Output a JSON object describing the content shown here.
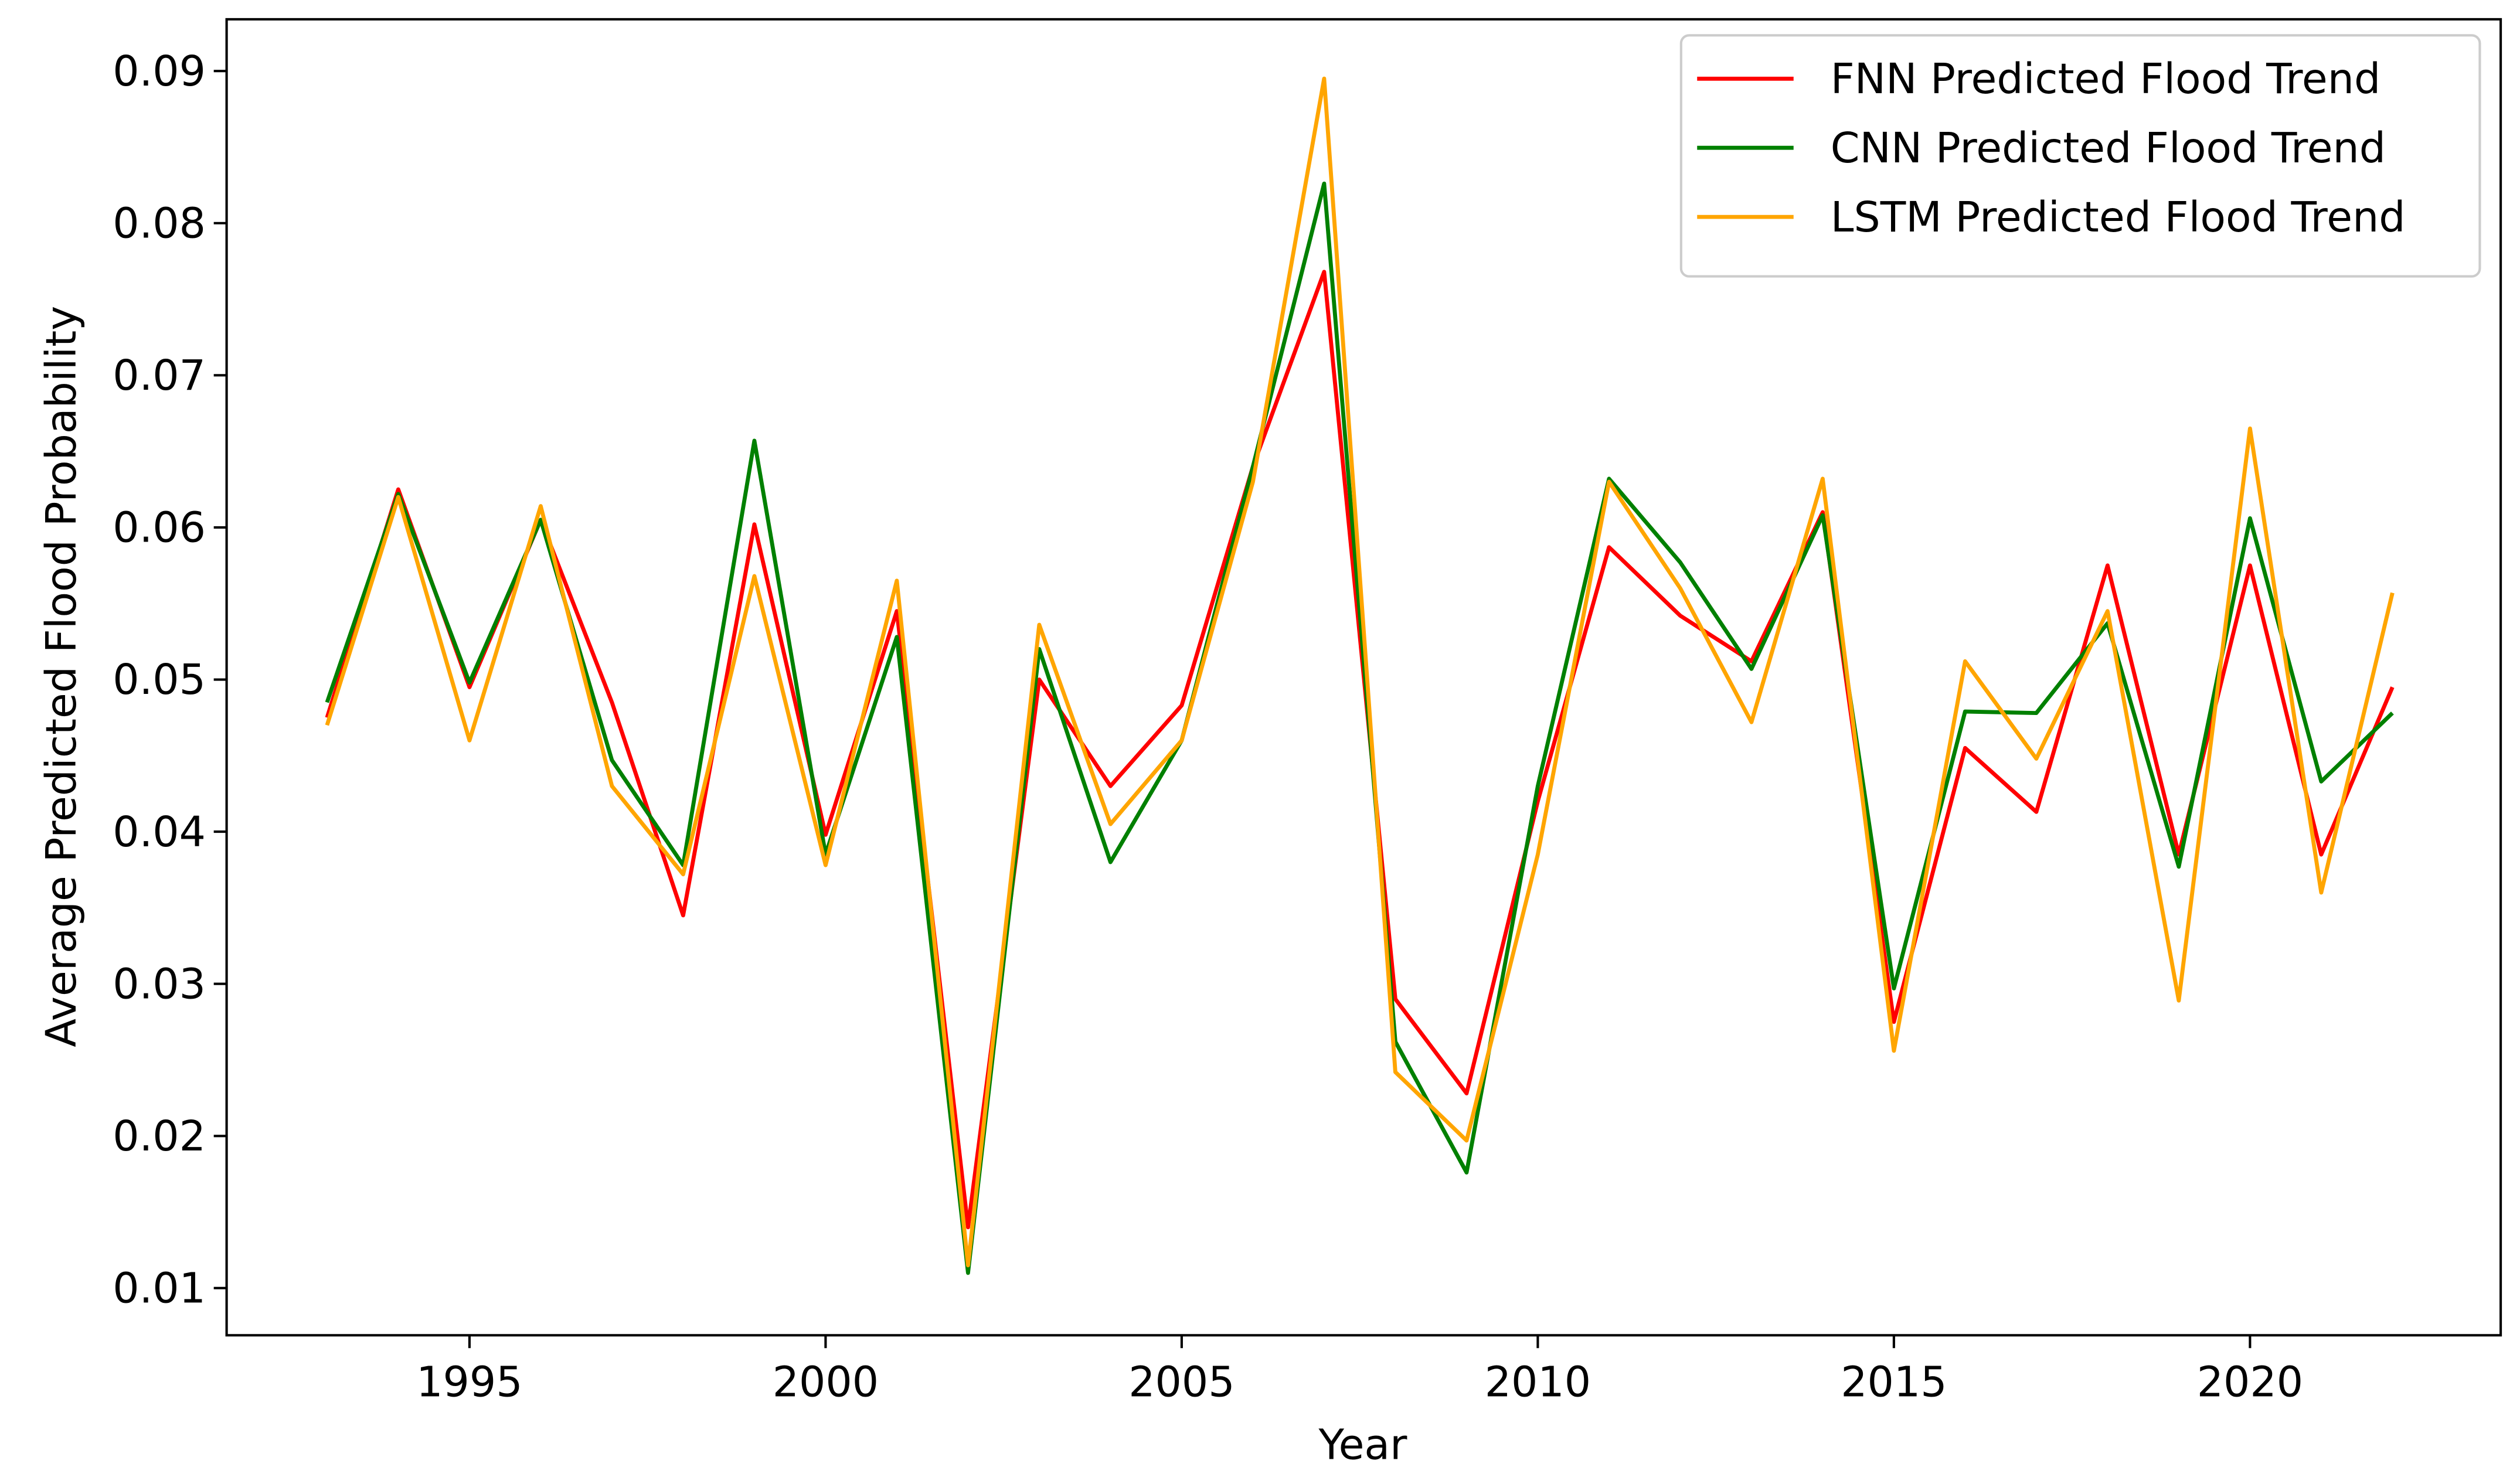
{
  "chart_data": {
    "type": "line",
    "x_label": "Year",
    "y_label": "Average Predicted Flood Probability",
    "x": [
      1993,
      1994,
      1995,
      1996,
      1997,
      1998,
      1999,
      2000,
      2001,
      2002,
      2003,
      2004,
      2005,
      2006,
      2007,
      2008,
      2009,
      2010,
      2011,
      2012,
      2013,
      2014,
      2015,
      2016,
      2017,
      2018,
      2019,
      2020,
      2021,
      2022
    ],
    "series": [
      {
        "name": "FNN Predicted Flood Trend",
        "color": "#ff0000",
        "values": [
          0.0475,
          0.0625,
          0.0495,
          0.0605,
          0.0485,
          0.0345,
          0.0602,
          0.0398,
          0.0545,
          0.014,
          0.05,
          0.043,
          0.0483,
          0.064,
          0.0768,
          0.029,
          0.0228,
          0.042,
          0.0587,
          0.0542,
          0.0512,
          0.061,
          0.0275,
          0.0455,
          0.0413,
          0.0575,
          0.0385,
          0.0575,
          0.0385,
          0.0495
        ]
      },
      {
        "name": "CNN Predicted Flood Trend",
        "color": "#008000",
        "values": [
          0.0485,
          0.0622,
          0.0498,
          0.0605,
          0.0447,
          0.0378,
          0.0657,
          0.0385,
          0.0528,
          0.011,
          0.052,
          0.038,
          0.046,
          0.064,
          0.0826,
          0.0262,
          0.0176,
          0.043,
          0.0632,
          0.0577,
          0.0507,
          0.0608,
          0.0297,
          0.0479,
          0.0478,
          0.0537,
          0.0377,
          0.0606,
          0.0433,
          0.0478
        ]
      },
      {
        "name": "LSTM Predicted Flood Trend",
        "color": "#ffa500",
        "values": [
          0.047,
          0.062,
          0.046,
          0.0614,
          0.043,
          0.0372,
          0.0568,
          0.0378,
          0.0565,
          0.0115,
          0.0536,
          0.0405,
          0.046,
          0.063,
          0.0895,
          0.0242,
          0.0197,
          0.0385,
          0.063,
          0.056,
          0.0472,
          0.0632,
          0.0256,
          0.0512,
          0.0448,
          0.0545,
          0.0289,
          0.0665,
          0.036,
          0.0557
        ]
      }
    ],
    "xlim": [
      1991.59,
      2023.52
    ],
    "xticks": [
      1995,
      2000,
      2005,
      2010,
      2015,
      2020
    ],
    "ylim": [
      0.0069,
      0.0934
    ],
    "yticks": [
      0.01,
      0.02,
      0.03,
      0.04,
      0.05,
      0.06,
      0.07,
      0.08,
      0.09
    ],
    "legend": "upper right"
  }
}
